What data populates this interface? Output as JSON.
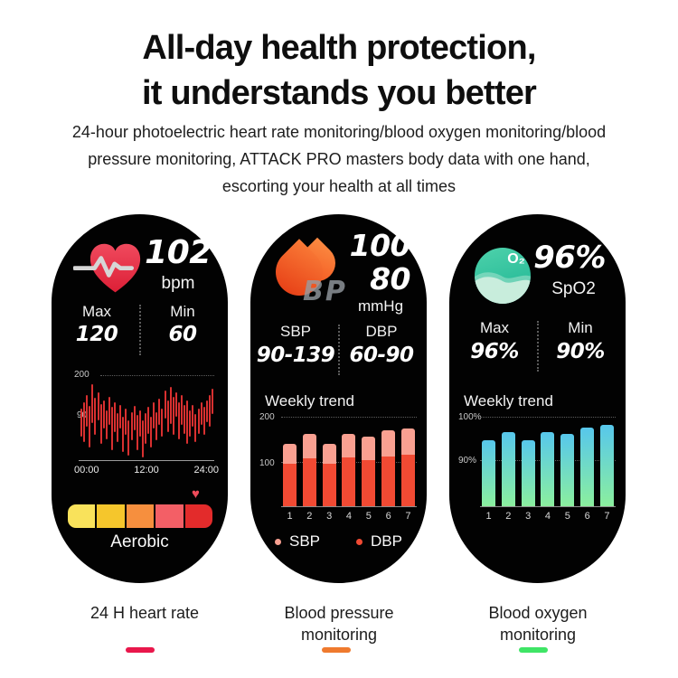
{
  "header": {
    "title_lines": [
      "All-day health protection,",
      "it understands you better"
    ],
    "subtitle_lines": [
      "24-hour photoelectric heart rate monitoring/blood oxygen monitoring/blood",
      "pressure monitoring, ATTACK PRO masters body data with one hand,",
      "escorting your health at all times"
    ]
  },
  "watch_heart_rate": {
    "value": "102",
    "unit": "bpm",
    "max_label": "Max",
    "max_value": "120",
    "min_label": "Min",
    "min_value": "60",
    "zone_label": "Aerobic",
    "zone_marker_icon": "♥",
    "zones": [
      "#f9e25b",
      "#f5c62c",
      "#f68f3e",
      "#f35f66",
      "#e32b2b"
    ]
  },
  "watch_blood_pressure": {
    "sys_value": "100",
    "dia_value": "80",
    "unit": "mmHg",
    "watermark": "BP",
    "sbp_label": "SBP",
    "sbp_range": "90-139",
    "dbp_label": "DBP",
    "dbp_range": "60-90",
    "trend_label": "Weekly trend"
  },
  "watch_spo2": {
    "value": "96%",
    "unit": "SpO2",
    "icon_text": "O₂",
    "max_label": "Max",
    "max_value": "96%",
    "min_label": "Min",
    "min_value": "90%",
    "trend_label": "Weekly trend"
  },
  "captions": [
    {
      "lines": [
        "24 H heart rate",
        ""
      ],
      "dash_color": "#e9174b"
    },
    {
      "lines": [
        "Blood pressure",
        "monitoring"
      ],
      "dash_color": "#ef7a2e"
    },
    {
      "lines": [
        "Blood oxygen",
        "monitoring"
      ],
      "dash_color": "#3fe566"
    }
  ],
  "chart_data": [
    {
      "id": "heart_rate_24h",
      "type": "bar",
      "title": "24 H heart rate",
      "ytick_labels": [
        "200",
        "90"
      ],
      "xtick_labels": [
        "00:00",
        "12:00",
        "24:00"
      ],
      "bar_color": "#d93030",
      "bars_note": "each bar is [top_pct, bottom_pct] of chart height, range band around ~90 bpm",
      "bars": [
        [
          38,
          72
        ],
        [
          30,
          78
        ],
        [
          22,
          60
        ],
        [
          35,
          85
        ],
        [
          9,
          55
        ],
        [
          25,
          70
        ],
        [
          18,
          52
        ],
        [
          33,
          80
        ],
        [
          28,
          62
        ],
        [
          40,
          75
        ],
        [
          24,
          58
        ],
        [
          36,
          88
        ],
        [
          30,
          66
        ],
        [
          44,
          78
        ],
        [
          34,
          62
        ],
        [
          48,
          90
        ],
        [
          38,
          70
        ],
        [
          52,
          95
        ],
        [
          42,
          76
        ],
        [
          35,
          64
        ],
        [
          46,
          88
        ],
        [
          40,
          72
        ],
        [
          52,
          97
        ],
        [
          44,
          80
        ],
        [
          36,
          68
        ],
        [
          48,
          85
        ],
        [
          30,
          62
        ],
        [
          42,
          76
        ],
        [
          26,
          58
        ],
        [
          38,
          72
        ],
        [
          16,
          50
        ],
        [
          28,
          66
        ],
        [
          12,
          56
        ],
        [
          24,
          70
        ],
        [
          18,
          48
        ],
        [
          30,
          75
        ],
        [
          22,
          58
        ],
        [
          34,
          68
        ],
        [
          28,
          80
        ],
        [
          40,
          72
        ],
        [
          34,
          60
        ],
        [
          45,
          78
        ],
        [
          38,
          68
        ],
        [
          30,
          58
        ],
        [
          36,
          70
        ],
        [
          28,
          54
        ],
        [
          22,
          60
        ],
        [
          14,
          45
        ]
      ]
    },
    {
      "id": "blood_pressure_weekly",
      "type": "bar",
      "stacked": true,
      "title": "Weekly trend",
      "categories": [
        "1",
        "2",
        "3",
        "4",
        "5",
        "6",
        "7"
      ],
      "series": [
        {
          "name": "SBP",
          "values": [
            140,
            162,
            140,
            162,
            156,
            169,
            173
          ],
          "color": "#f9a091"
        },
        {
          "name": "DBP",
          "values": [
            94,
            108,
            94,
            110,
            104,
            112,
            115
          ],
          "color": "#f14a33"
        }
      ],
      "ylim": [
        0,
        200
      ],
      "ytick_labels": [
        "200",
        "100"
      ],
      "legend_position": "bottom"
    },
    {
      "id": "spo2_weekly",
      "type": "bar",
      "title": "Weekly trend",
      "categories": [
        "1",
        "2",
        "3",
        "4",
        "5",
        "6",
        "7"
      ],
      "values": [
        94.5,
        96.5,
        94.5,
        96.5,
        96,
        97.5,
        98
      ],
      "ylim": [
        79,
        100
      ],
      "ytick_labels": [
        "100%",
        "90%"
      ],
      "bar_gradient": [
        "#57c7ec",
        "#8bef9e"
      ]
    }
  ]
}
